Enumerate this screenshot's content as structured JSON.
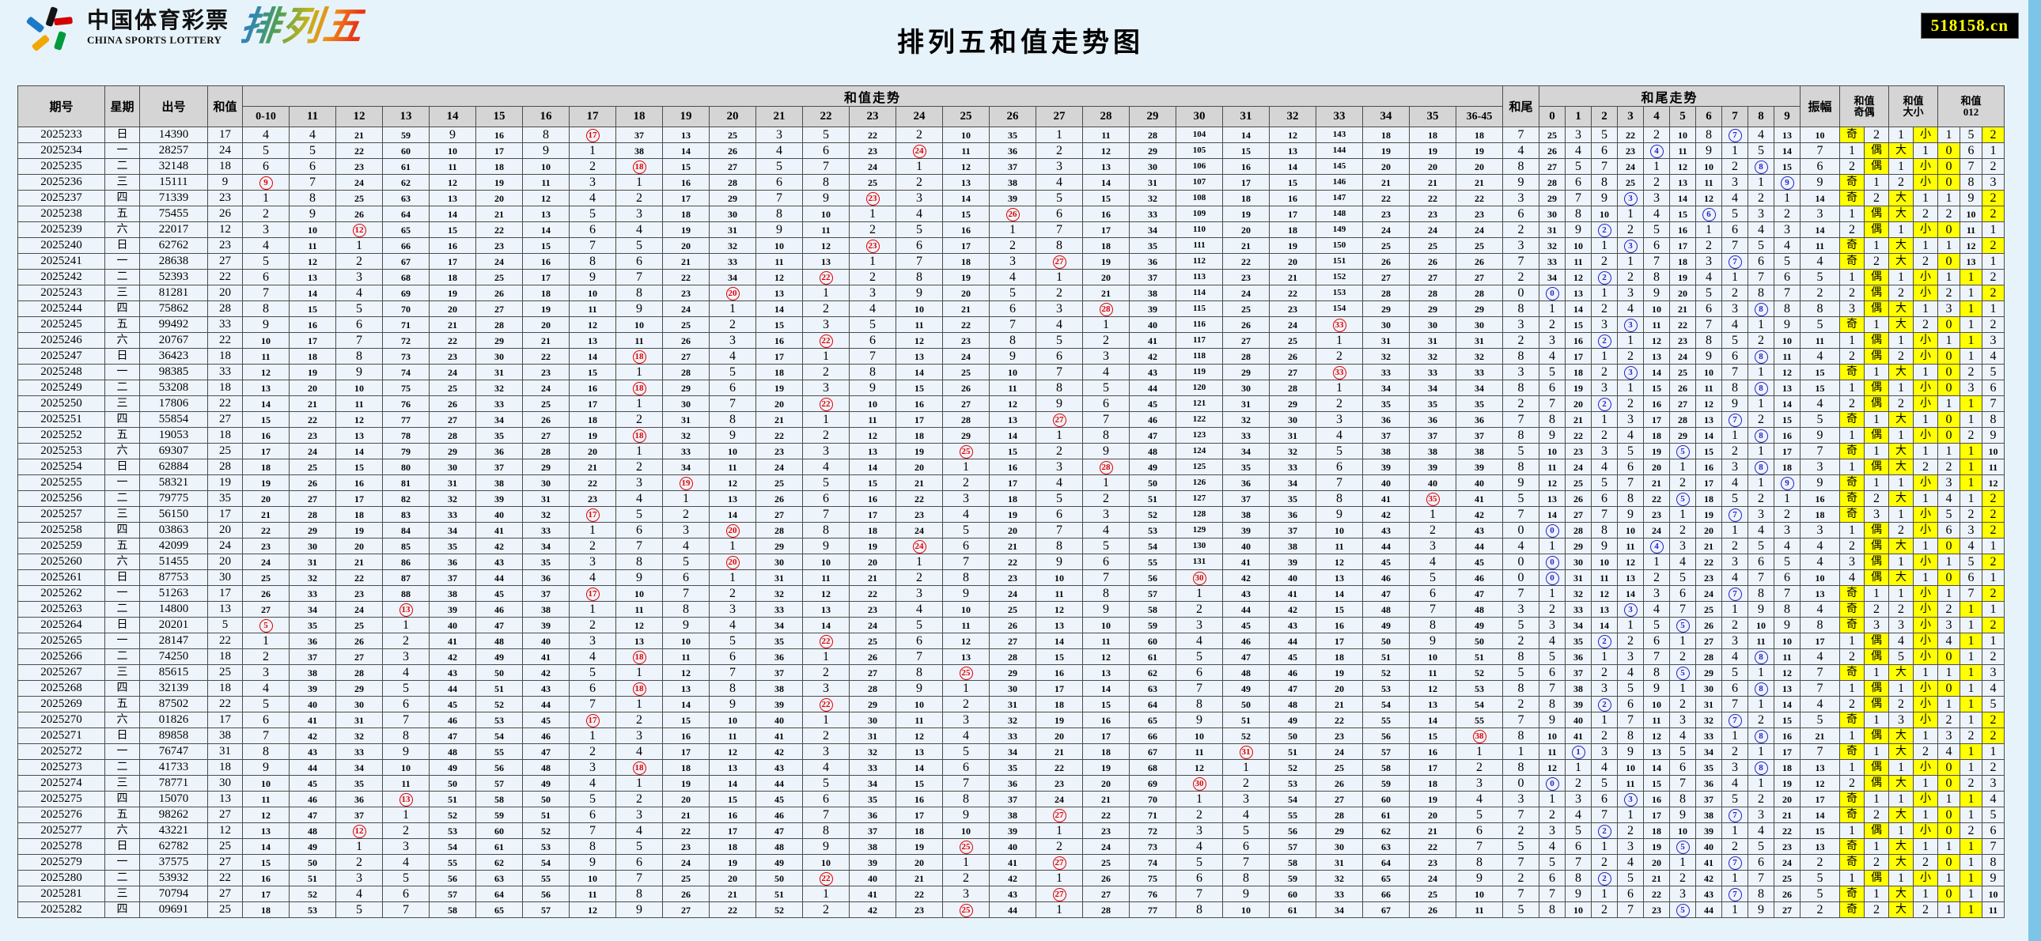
{
  "page": {
    "title": "排列五和值走势图",
    "badge": "518158.cn"
  },
  "logo": {
    "zh": "中国体育彩票",
    "en": "CHINA SPORTS LOTTERY",
    "product": "排列五"
  },
  "colors": {
    "hit_red": "#e00000",
    "hit_blue": "#2222cc",
    "hit_yellow": "#ffff00",
    "header_bg": "#d5d5d5",
    "row_bg": "#eef4fb",
    "page_bg": "#e7f3fa",
    "edge_strip": "#7cc4e8",
    "badge_bg": "#000000",
    "badge_text": "#ffff00"
  },
  "headers": {
    "issue": "期号",
    "week": "星期",
    "draw": "出号",
    "sum": "和值",
    "trend_group": "和值走势",
    "tail": "和尾",
    "tail_group": "和尾走势",
    "amplitude": "振幅",
    "odd_even_line1": "和值",
    "odd_even_line2": "奇偶",
    "big_small_line1": "和值",
    "big_small_line2": "大小",
    "mod_line1": "和值",
    "mod_line2": "012",
    "trend_cols": [
      "0-10",
      "11",
      "12",
      "13",
      "14",
      "15",
      "16",
      "17",
      "18",
      "19",
      "20",
      "21",
      "22",
      "23",
      "24",
      "25",
      "26",
      "27",
      "28",
      "29",
      "30",
      "31",
      "32",
      "33",
      "34",
      "35",
      "36-45"
    ],
    "tail_cols": [
      "0",
      "1",
      "2",
      "3",
      "4",
      "5",
      "6",
      "7",
      "8",
      "9"
    ],
    "odd_even_chars": [
      "奇",
      "偶"
    ],
    "big_small_chars": [
      "大",
      "小"
    ],
    "mod_chars": [
      "0",
      "1",
      "2"
    ]
  },
  "baseline_first_row": {
    "trend": [
      4,
      4,
      21,
      59,
      9,
      16,
      8,
      "H",
      37,
      13,
      25,
      3,
      5,
      22,
      2,
      10,
      35,
      1,
      11,
      28,
      104,
      14,
      12,
      143,
      18,
      18,
      18
    ],
    "tail": [
      25,
      3,
      5,
      22,
      2,
      10,
      8,
      "H",
      4,
      13
    ],
    "odd_even": [
      "H",
      2
    ],
    "big_small": [
      1,
      "H"
    ],
    "mod012": [
      1,
      5,
      "H"
    ],
    "amplitude": 10
  },
  "rows": [
    {
      "issue": "2025233",
      "week": "日",
      "num": "14390",
      "sum": 17
    },
    {
      "issue": "2025234",
      "week": "一",
      "num": "28257",
      "sum": 24
    },
    {
      "issue": "2025235",
      "week": "二",
      "num": "32148",
      "sum": 18
    },
    {
      "issue": "2025236",
      "week": "三",
      "num": "15111",
      "sum": 9
    },
    {
      "issue": "2025237",
      "week": "四",
      "num": "71339",
      "sum": 23
    },
    {
      "issue": "2025238",
      "week": "五",
      "num": "75455",
      "sum": 26
    },
    {
      "issue": "2025239",
      "week": "六",
      "num": "22017",
      "sum": 12
    },
    {
      "issue": "2025240",
      "week": "日",
      "num": "62762",
      "sum": 23
    },
    {
      "issue": "2025241",
      "week": "一",
      "num": "28638",
      "sum": 27
    },
    {
      "issue": "2025242",
      "week": "二",
      "num": "52393",
      "sum": 22
    },
    {
      "issue": "2025243",
      "week": "三",
      "num": "81281",
      "sum": 20
    },
    {
      "issue": "2025244",
      "week": "四",
      "num": "75862",
      "sum": 28
    },
    {
      "issue": "2025245",
      "week": "五",
      "num": "99492",
      "sum": 33
    },
    {
      "issue": "2025246",
      "week": "六",
      "num": "20767",
      "sum": 22
    },
    {
      "issue": "2025247",
      "week": "日",
      "num": "36423",
      "sum": 18
    },
    {
      "issue": "2025248",
      "week": "一",
      "num": "98385",
      "sum": 33
    },
    {
      "issue": "2025249",
      "week": "二",
      "num": "53208",
      "sum": 18
    },
    {
      "issue": "2025250",
      "week": "三",
      "num": "17806",
      "sum": 22
    },
    {
      "issue": "2025251",
      "week": "四",
      "num": "55854",
      "sum": 27
    },
    {
      "issue": "2025252",
      "week": "五",
      "num": "19053",
      "sum": 18
    },
    {
      "issue": "2025253",
      "week": "六",
      "num": "69307",
      "sum": 25
    },
    {
      "issue": "2025254",
      "week": "日",
      "num": "62884",
      "sum": 28
    },
    {
      "issue": "2025255",
      "week": "一",
      "num": "58321",
      "sum": 19
    },
    {
      "issue": "2025256",
      "week": "二",
      "num": "79775",
      "sum": 35
    },
    {
      "issue": "2025257",
      "week": "三",
      "num": "56150",
      "sum": 17
    },
    {
      "issue": "2025258",
      "week": "四",
      "num": "03863",
      "sum": 20
    },
    {
      "issue": "2025259",
      "week": "五",
      "num": "42099",
      "sum": 24
    },
    {
      "issue": "2025260",
      "week": "六",
      "num": "51455",
      "sum": 20
    },
    {
      "issue": "2025261",
      "week": "日",
      "num": "87753",
      "sum": 30
    },
    {
      "issue": "2025262",
      "week": "一",
      "num": "51263",
      "sum": 17
    },
    {
      "issue": "2025263",
      "week": "二",
      "num": "14800",
      "sum": 13
    },
    {
      "issue": "2025264",
      "week": "日",
      "num": "20201",
      "sum": 5
    },
    {
      "issue": "2025265",
      "week": "一",
      "num": "28147",
      "sum": 22
    },
    {
      "issue": "2025266",
      "week": "二",
      "num": "74250",
      "sum": 18
    },
    {
      "issue": "2025267",
      "week": "三",
      "num": "85615",
      "sum": 25
    },
    {
      "issue": "2025268",
      "week": "四",
      "num": "32139",
      "sum": 18
    },
    {
      "issue": "2025269",
      "week": "五",
      "num": "87502",
      "sum": 22
    },
    {
      "issue": "2025270",
      "week": "六",
      "num": "01826",
      "sum": 17
    },
    {
      "issue": "2025271",
      "week": "日",
      "num": "89858",
      "sum": 38
    },
    {
      "issue": "2025272",
      "week": "一",
      "num": "76747",
      "sum": 31
    },
    {
      "issue": "2025273",
      "week": "二",
      "num": "41733",
      "sum": 18
    },
    {
      "issue": "2025274",
      "week": "三",
      "num": "78771",
      "sum": 30
    },
    {
      "issue": "2025275",
      "week": "四",
      "num": "15070",
      "sum": 13
    },
    {
      "issue": "2025276",
      "week": "五",
      "num": "98262",
      "sum": 27
    },
    {
      "issue": "2025277",
      "week": "六",
      "num": "43221",
      "sum": 12
    },
    {
      "issue": "2025278",
      "week": "日",
      "num": "62782",
      "sum": 25
    },
    {
      "issue": "2025279",
      "week": "一",
      "num": "37575",
      "sum": 27
    },
    {
      "issue": "2025280",
      "week": "二",
      "num": "53932",
      "sum": 22
    },
    {
      "issue": "2025281",
      "week": "三",
      "num": "70794",
      "sum": 27
    },
    {
      "issue": "2025282",
      "week": "四",
      "num": "09691",
      "sum": 25
    }
  ]
}
